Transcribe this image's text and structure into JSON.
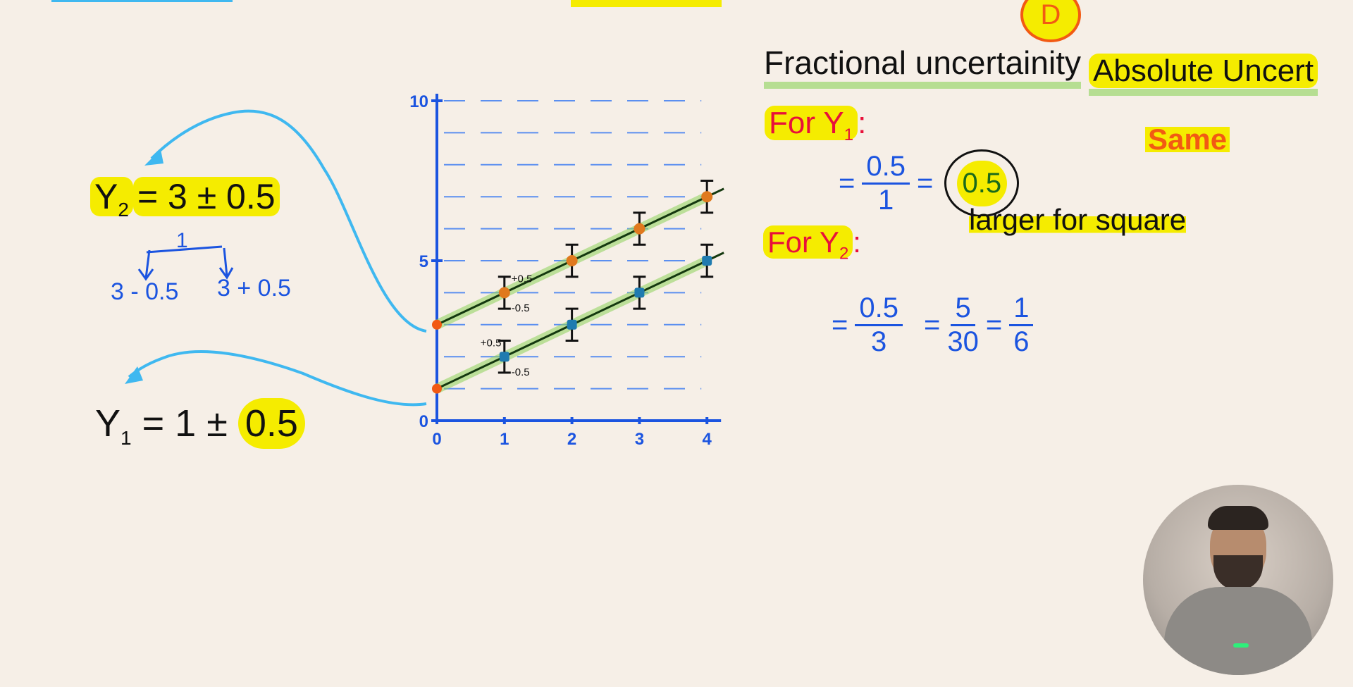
{
  "colors": {
    "background": "#f6efe7",
    "ink": "#111111",
    "blue": "#1b54e0",
    "red": "#e8103a",
    "orange": "#f25a13",
    "highlight": "#f5ec00",
    "cyan": "#3fb8f0",
    "fit_glow": "#8cd25a"
  },
  "top": {
    "badge": "D"
  },
  "left": {
    "y2_label": "Y",
    "y2_sub": "2",
    "y2_eq": "= 3 ± 0.5",
    "branch_top": "1",
    "branch_left": "3 - 0.5",
    "branch_right": "3 + 0.5",
    "y1_label": "Y",
    "y1_sub": "1",
    "y1_eq_a": "= 1 ±",
    "y1_eq_b": "0.5"
  },
  "right": {
    "heading_fractional": "Fractional uncertainity",
    "heading_absolute": "Absolute Uncert",
    "for_y1": "For Y",
    "for_y1_sub": "1",
    "colon": ":",
    "y1_num": "0.5",
    "y1_den": "1",
    "eq": "=",
    "y1_result": "0.5",
    "same": "Same",
    "larger": "larger for square",
    "for_y2": "For Y",
    "for_y2_sub": "2",
    "y2_num": "0.5",
    "y2_den": "3",
    "y2_num2": "5",
    "y2_den2": "30",
    "y2_num3": "1",
    "y2_den3": "6"
  },
  "chart_data": {
    "type": "scatter",
    "xlim": [
      0,
      4
    ],
    "ylim": [
      0,
      10
    ],
    "x_ticks": [
      "0",
      "1",
      "2",
      "3",
      "4"
    ],
    "y_ticks": [
      "0",
      "5",
      "10"
    ],
    "grid": "dashed horizontal every 1",
    "series": [
      {
        "x": [
          0,
          1,
          2,
          3,
          4
        ],
        "y": [
          3,
          4,
          5,
          6,
          7
        ],
        "error": 0.5,
        "marker": "orange"
      },
      {
        "x": [
          0,
          1,
          2,
          3,
          4
        ],
        "y": [
          1,
          2,
          3,
          4,
          5
        ],
        "error": 0.5,
        "marker": "teal"
      }
    ],
    "annotations": [
      {
        "text": "+0.5",
        "x": 1,
        "y": 4.5
      },
      {
        "text": "-0.5",
        "x": 1,
        "y": 3.5
      },
      {
        "text": "+0.5",
        "x": 1,
        "y": 2.5
      },
      {
        "text": "-0.5",
        "x": 1,
        "y": 1.5
      }
    ]
  }
}
